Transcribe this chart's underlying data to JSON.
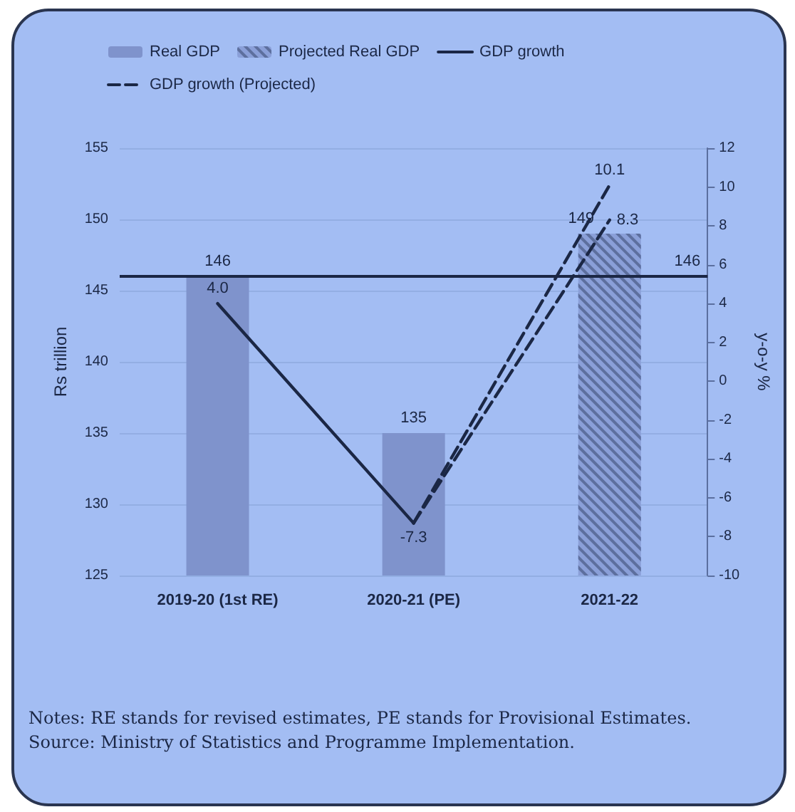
{
  "chart_data": {
    "type": "bar",
    "categories": [
      "2019-20 (1st RE)",
      "2020-21 (PE)",
      "2021-22"
    ],
    "ylabel": "Rs trillion",
    "y2label": "y-o-y %",
    "ylim": [
      125,
      155
    ],
    "yticks": [
      125,
      130,
      135,
      140,
      145,
      150,
      155
    ],
    "y2lim": [
      -10,
      12
    ],
    "y2ticks": [
      -10,
      -8,
      -6,
      -4,
      -2,
      0,
      2,
      4,
      6,
      8,
      10,
      12
    ],
    "series": [
      {
        "name": "Real GDP",
        "color": "#7f93cc",
        "values": [
          146,
          135,
          null
        ],
        "value_labels": [
          "146",
          "135",
          null
        ]
      },
      {
        "name": "Projected Real GDP",
        "color": "#8a9fd8",
        "values": [
          null,
          null,
          149
        ],
        "value_labels": [
          null,
          null,
          "149"
        ]
      },
      {
        "name": "GDP growth",
        "type": "line",
        "axis": "y2",
        "color": "#1b2745",
        "line_style": "solid",
        "values": [
          4.0,
          -7.3,
          null
        ],
        "value_labels": [
          "4.0",
          "-7.3",
          null
        ]
      },
      {
        "name": "GDP growth (Projected)",
        "type": "line",
        "axis": "y2",
        "color": "#1b2745",
        "line_style": "dashed",
        "values": [
          null,
          -7.3,
          10.1
        ],
        "value_labels": [
          null,
          null,
          "10.1"
        ]
      },
      {
        "type": "line",
        "axis": "y2",
        "color": "#1b2745",
        "line_style": "dashed",
        "values": [
          null,
          -7.3,
          8.3
        ],
        "value_labels": [
          null,
          null,
          "8.3"
        ]
      }
    ],
    "ref_lines": [
      {
        "axis": "y",
        "value": 146,
        "label": "146",
        "color": "#1b2745"
      }
    ],
    "grid": "y",
    "legend": "top",
    "marker": "none",
    "annotations": [
      "Notes: RE stands for revised estimates, PE stands for Provisional Estimates.",
      "Source: Ministry of Statistics and Programme Implementation."
    ]
  }
}
